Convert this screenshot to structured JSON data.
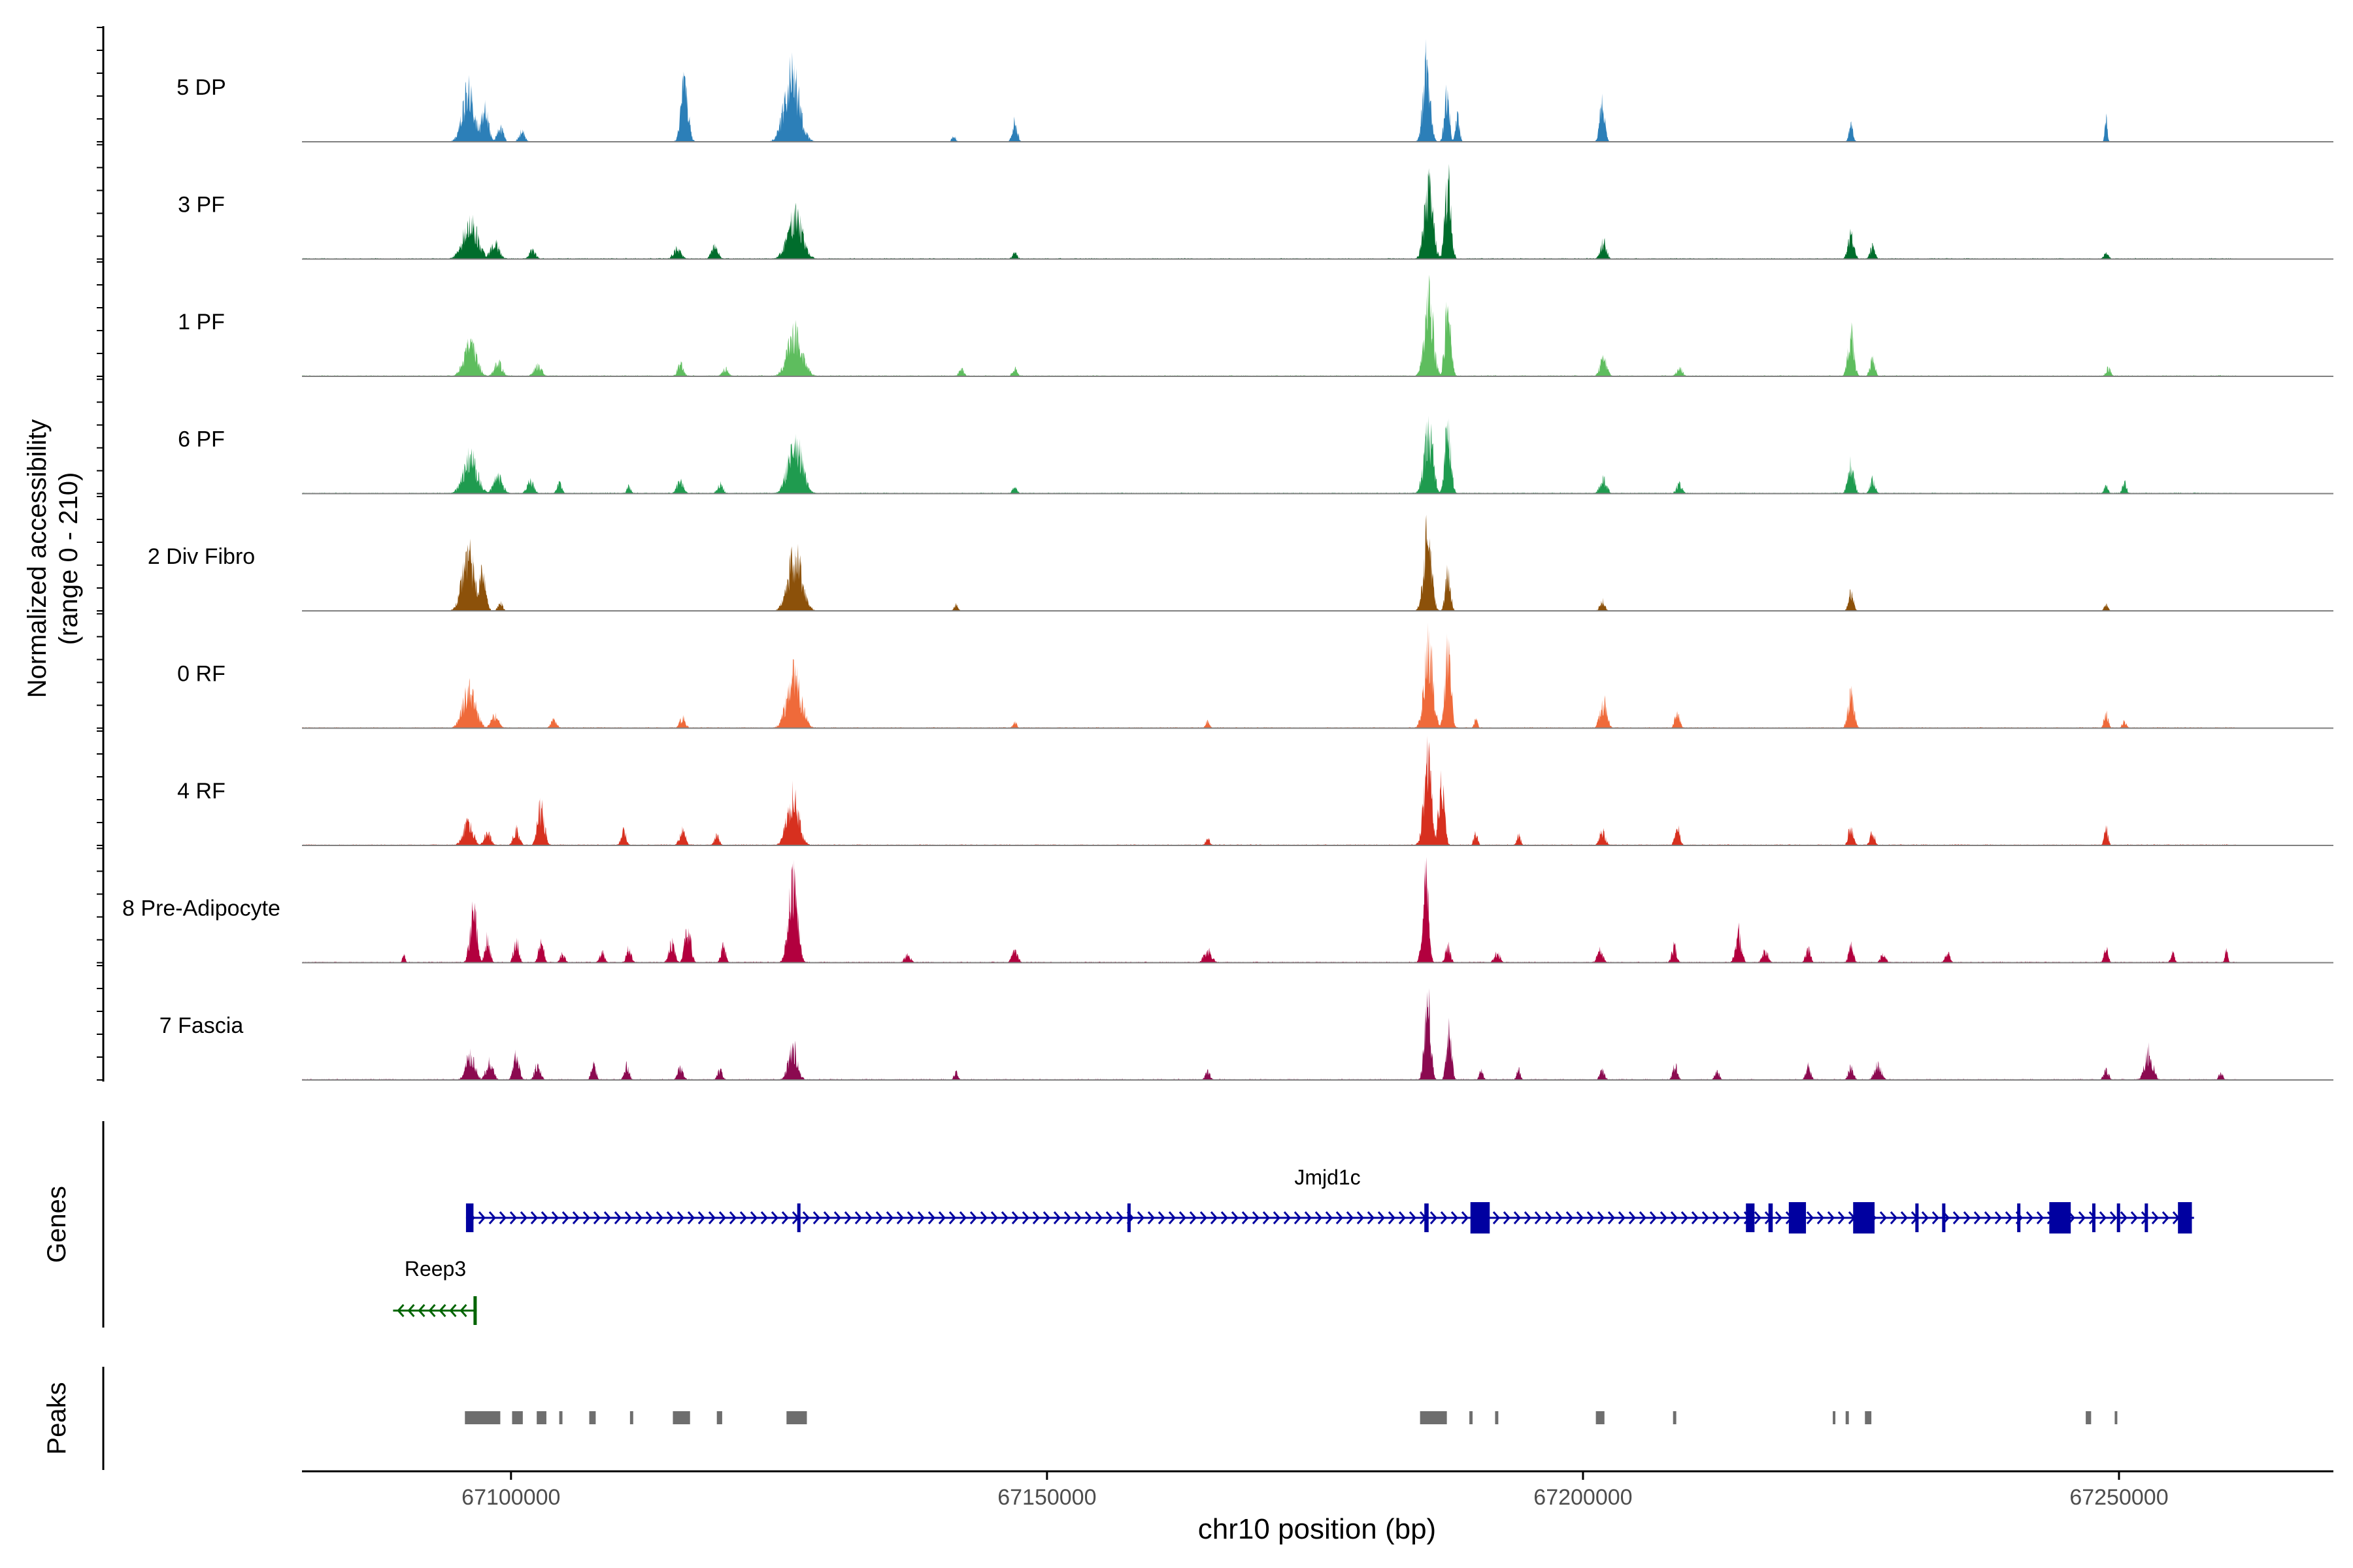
{
  "chart_data": {
    "type": "area",
    "ylabel": "Normalized accessibility",
    "yrange_label": "(range 0 - 210)",
    "ylim": [
      0,
      210
    ],
    "xlabel": "chr10 position (bp)",
    "xlim": [
      67080500,
      67270000
    ],
    "xticks": [
      {
        "value": 67100000,
        "label": "67100000"
      },
      {
        "value": 67150000,
        "label": "67150000"
      },
      {
        "value": 67200000,
        "label": "67200000"
      },
      {
        "value": 67250000,
        "label": "67250000"
      }
    ],
    "data_extent": [
      67080500,
      67261000
    ],
    "series": [
      {
        "name": "5 DP",
        "color": "#2c7fb8",
        "baseline": 1,
        "peaks": [
          [
            67096000,
            130,
            1200
          ],
          [
            67097500,
            85,
            800
          ],
          [
            67099000,
            40,
            600
          ],
          [
            67101000,
            25,
            600
          ],
          [
            67116200,
            150,
            700
          ],
          [
            67126200,
            165,
            1500
          ],
          [
            67141300,
            15,
            400
          ],
          [
            67147000,
            50,
            500
          ],
          [
            67185400,
            200,
            700
          ],
          [
            67187300,
            115,
            500
          ],
          [
            67188300,
            60,
            400
          ],
          [
            67201800,
            100,
            500
          ],
          [
            67225000,
            50,
            400
          ],
          [
            67248800,
            55,
            250
          ]
        ]
      },
      {
        "name": "3 PF",
        "color": "#006d2c",
        "baseline": 2,
        "peaks": [
          [
            67096200,
            90,
            1500
          ],
          [
            67098500,
            40,
            900
          ],
          [
            67102000,
            20,
            700
          ],
          [
            67115500,
            25,
            800
          ],
          [
            67119000,
            30,
            700
          ],
          [
            67126500,
            105,
            1500
          ],
          [
            67147000,
            15,
            500
          ],
          [
            67185600,
            170,
            900
          ],
          [
            67187400,
            195,
            600
          ],
          [
            67201900,
            45,
            600
          ],
          [
            67225000,
            65,
            600
          ],
          [
            67227000,
            30,
            500
          ],
          [
            67248800,
            15,
            500
          ]
        ]
      },
      {
        "name": "1 PF",
        "color": "#5ebd5e",
        "baseline": 2,
        "peaks": [
          [
            67096200,
            75,
            1300
          ],
          [
            67098800,
            35,
            800
          ],
          [
            67102500,
            25,
            800
          ],
          [
            67115800,
            30,
            600
          ],
          [
            67120000,
            20,
            600
          ],
          [
            67126500,
            105,
            1500
          ],
          [
            67142000,
            20,
            500
          ],
          [
            67147000,
            20,
            500
          ],
          [
            67185600,
            190,
            900
          ],
          [
            67187400,
            185,
            600
          ],
          [
            67201900,
            45,
            700
          ],
          [
            67209000,
            20,
            600
          ],
          [
            67225000,
            105,
            600
          ],
          [
            67227000,
            45,
            500
          ],
          [
            67249000,
            20,
            500
          ]
        ]
      },
      {
        "name": "6 PF",
        "color": "#1f9b4f",
        "baseline": 2,
        "peaks": [
          [
            67096200,
            90,
            1400
          ],
          [
            67098800,
            45,
            900
          ],
          [
            67101800,
            30,
            700
          ],
          [
            67104500,
            25,
            500
          ],
          [
            67111000,
            20,
            400
          ],
          [
            67115800,
            30,
            700
          ],
          [
            67119500,
            25,
            600
          ],
          [
            67126500,
            135,
            1400
          ],
          [
            67147000,
            15,
            500
          ],
          [
            67185600,
            160,
            900
          ],
          [
            67187400,
            170,
            600
          ],
          [
            67201900,
            35,
            700
          ],
          [
            67209000,
            25,
            600
          ],
          [
            67225000,
            80,
            600
          ],
          [
            67227000,
            35,
            500
          ],
          [
            67248800,
            20,
            400
          ],
          [
            67250500,
            30,
            400
          ]
        ]
      },
      {
        "name": "2 Div Fibro",
        "color": "#8c510a",
        "baseline": 1,
        "peaks": [
          [
            67096000,
            150,
            1200
          ],
          [
            67097300,
            90,
            700
          ],
          [
            67099000,
            20,
            500
          ],
          [
            67126500,
            140,
            1400
          ],
          [
            67141500,
            15,
            400
          ],
          [
            67185500,
            190,
            800
          ],
          [
            67187400,
            100,
            500
          ],
          [
            67201800,
            25,
            500
          ],
          [
            67225000,
            45,
            500
          ],
          [
            67248800,
            15,
            400
          ]
        ]
      },
      {
        "name": "0 RF",
        "color": "#ef6a3a",
        "baseline": 2,
        "peaks": [
          [
            67096100,
            95,
            1300
          ],
          [
            67098500,
            30,
            800
          ],
          [
            67104000,
            20,
            600
          ],
          [
            67116000,
            25,
            600
          ],
          [
            67126400,
            130,
            1400
          ],
          [
            67147000,
            15,
            400
          ],
          [
            67165000,
            20,
            400
          ],
          [
            67185600,
            200,
            900
          ],
          [
            67187400,
            190,
            600
          ],
          [
            67190000,
            20,
            400
          ],
          [
            67201900,
            65,
            700
          ],
          [
            67208800,
            40,
            500
          ],
          [
            67225000,
            90,
            600
          ],
          [
            67248800,
            40,
            400
          ],
          [
            67250500,
            20,
            400
          ]
        ]
      },
      {
        "name": "4 RF",
        "color": "#d7301f",
        "baseline": 2,
        "peaks": [
          [
            67096000,
            55,
            1000
          ],
          [
            67097800,
            30,
            700
          ],
          [
            67100500,
            40,
            600
          ],
          [
            67102800,
            95,
            700
          ],
          [
            67110500,
            40,
            500
          ],
          [
            67116000,
            40,
            600
          ],
          [
            67119200,
            25,
            500
          ],
          [
            67126300,
            120,
            1200
          ],
          [
            67165000,
            20,
            400
          ],
          [
            67185500,
            205,
            800
          ],
          [
            67186800,
            150,
            600
          ],
          [
            67190000,
            30,
            400
          ],
          [
            67194000,
            25,
            400
          ],
          [
            67201800,
            35,
            600
          ],
          [
            67208800,
            45,
            500
          ],
          [
            67225000,
            50,
            500
          ],
          [
            67227000,
            30,
            500
          ],
          [
            67248800,
            40,
            400
          ]
        ]
      },
      {
        "name": "8 Pre-Adipocyte",
        "color": "#b2003e",
        "baseline": 2,
        "peaks": [
          [
            67090000,
            20,
            300
          ],
          [
            67096500,
            125,
            700
          ],
          [
            67097800,
            65,
            500
          ],
          [
            67100500,
            60,
            500
          ],
          [
            67102800,
            55,
            500
          ],
          [
            67104800,
            25,
            500
          ],
          [
            67108500,
            25,
            500
          ],
          [
            67111000,
            35,
            500
          ],
          [
            67115000,
            50,
            600
          ],
          [
            67116500,
            90,
            600
          ],
          [
            67119800,
            40,
            500
          ],
          [
            67126300,
            205,
            900
          ],
          [
            67137000,
            20,
            600
          ],
          [
            67147000,
            30,
            600
          ],
          [
            67165000,
            30,
            800
          ],
          [
            67185300,
            215,
            600
          ],
          [
            67187400,
            45,
            500
          ],
          [
            67192000,
            25,
            600
          ],
          [
            67201600,
            30,
            600
          ],
          [
            67208500,
            40,
            500
          ],
          [
            67214500,
            75,
            600
          ],
          [
            67217000,
            30,
            600
          ],
          [
            67221000,
            35,
            500
          ],
          [
            67225000,
            40,
            500
          ],
          [
            67228000,
            25,
            500
          ],
          [
            67234000,
            25,
            500
          ],
          [
            67248800,
            40,
            400
          ],
          [
            67255000,
            25,
            400
          ],
          [
            67260000,
            30,
            300
          ]
        ]
      },
      {
        "name": "7 Fascia",
        "color": "#8b0a50",
        "baseline": 2,
        "peaks": [
          [
            67096200,
            65,
            900
          ],
          [
            67098000,
            50,
            700
          ],
          [
            67100500,
            65,
            600
          ],
          [
            67102500,
            40,
            600
          ],
          [
            67107700,
            35,
            500
          ],
          [
            67110800,
            35,
            500
          ],
          [
            67115800,
            30,
            600
          ],
          [
            67119500,
            25,
            500
          ],
          [
            67126300,
            85,
            900
          ],
          [
            67141500,
            20,
            400
          ],
          [
            67165000,
            20,
            500
          ],
          [
            67185500,
            205,
            600
          ],
          [
            67187500,
            135,
            500
          ],
          [
            67190500,
            25,
            400
          ],
          [
            67194000,
            25,
            400
          ],
          [
            67201800,
            25,
            500
          ],
          [
            67208600,
            35,
            500
          ],
          [
            67212500,
            20,
            500
          ],
          [
            67221000,
            35,
            500
          ],
          [
            67225000,
            35,
            500
          ],
          [
            67227500,
            40,
            700
          ],
          [
            67248800,
            25,
            500
          ],
          [
            67252800,
            70,
            800
          ],
          [
            67259500,
            20,
            400
          ]
        ]
      }
    ],
    "genes": {
      "panel_label": "Genes",
      "items": [
        {
          "name": "Jmjd1c",
          "strand": "+",
          "start": 67095800,
          "end": 67257000,
          "color": "#0000a0",
          "exons": [
            [
              67095800,
              67096500
            ],
            [
              67126700,
              67126900
            ],
            [
              67157500,
              67157700
            ],
            [
              67185200,
              67185600
            ],
            [
              67189500,
              67191300
            ],
            [
              67215200,
              67216000
            ],
            [
              67217300,
              67217700
            ],
            [
              67219200,
              67220800
            ],
            [
              67225200,
              67227200
            ],
            [
              67231000,
              67231200
            ],
            [
              67233500,
              67233700
            ],
            [
              67240500,
              67240700
            ],
            [
              67243500,
              67245500
            ],
            [
              67247500,
              67247700
            ],
            [
              67249800,
              67250000
            ],
            [
              67252400,
              67252600
            ],
            [
              67255500,
              67256800
            ]
          ]
        },
        {
          "name": "Reep3",
          "strand": "-",
          "start": 67089000,
          "end": 67096800,
          "color": "#006400",
          "exons": [
            [
              67096500,
              67096800
            ]
          ]
        }
      ]
    },
    "peaks_track": {
      "panel_label": "Peaks",
      "color": "#6e6e6e",
      "regions": [
        [
          67095700,
          67099000
        ],
        [
          67100100,
          67101100
        ],
        [
          67102400,
          67103300
        ],
        [
          67104500,
          67104800
        ],
        [
          67107300,
          67107900
        ],
        [
          67111100,
          67111400
        ],
        [
          67115100,
          67116700
        ],
        [
          67119200,
          67119700
        ],
        [
          67125700,
          67127600
        ],
        [
          67184800,
          67187300
        ],
        [
          67189400,
          67189700
        ],
        [
          67191800,
          67192100
        ],
        [
          67201200,
          67202000
        ],
        [
          67208400,
          67208700
        ],
        [
          67223300,
          67223500
        ],
        [
          67224500,
          67224800
        ],
        [
          67226300,
          67226900
        ],
        [
          67246900,
          67247400
        ],
        [
          67249600,
          67249800
        ]
      ]
    }
  }
}
